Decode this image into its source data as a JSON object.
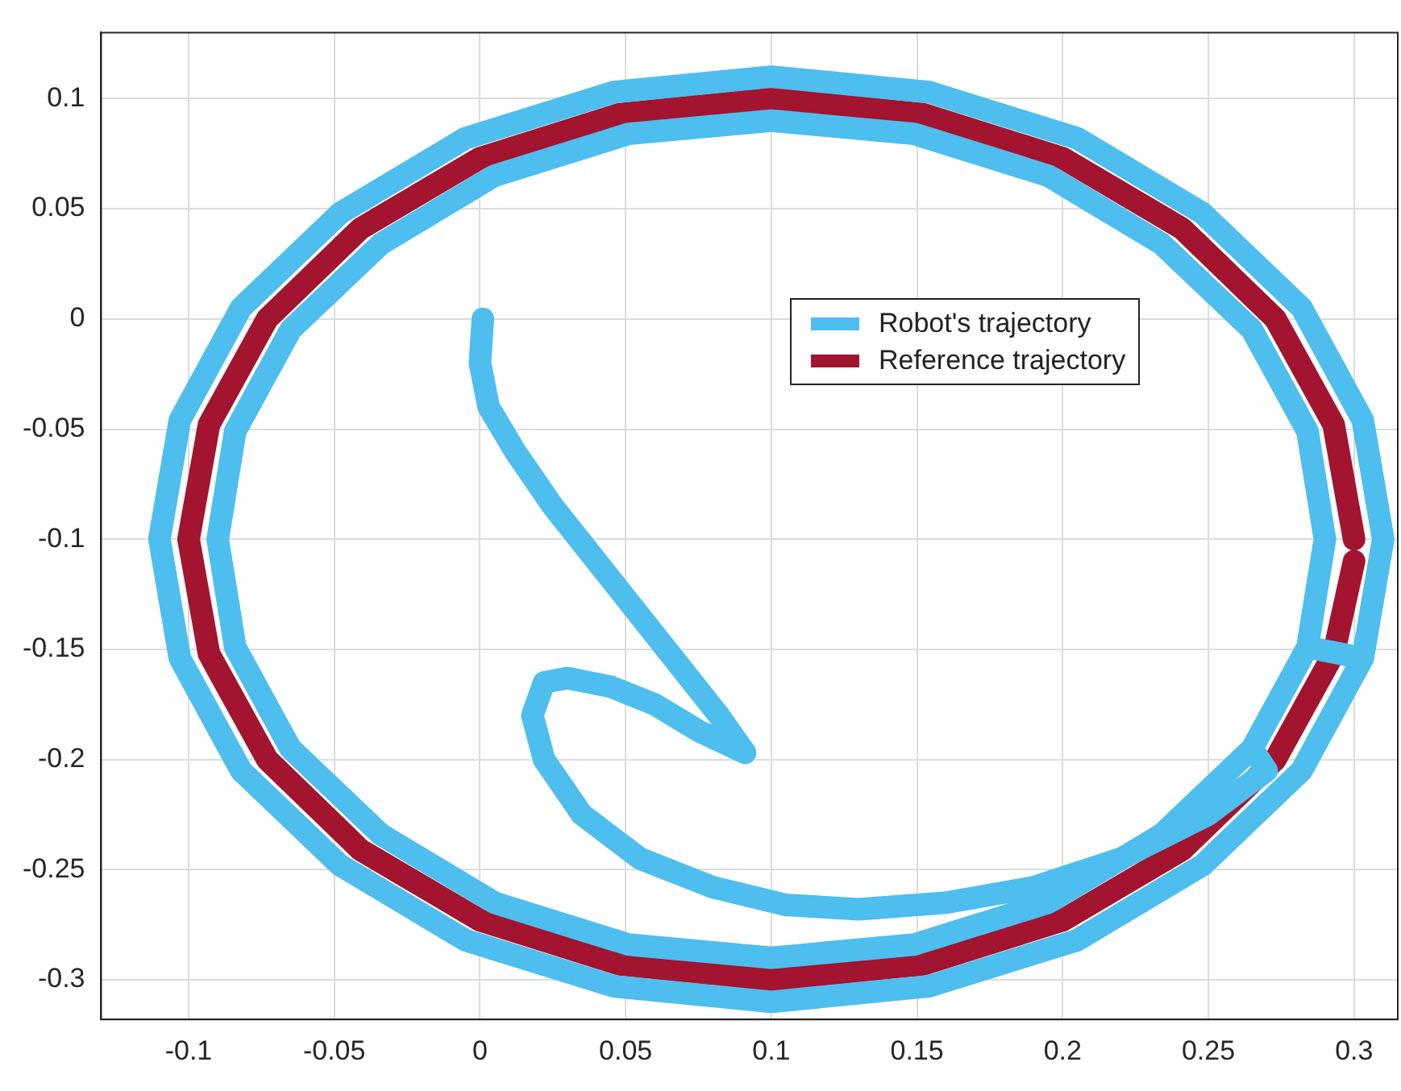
{
  "chart_data": {
    "type": "line",
    "line_style": "solid",
    "grid": true,
    "legend": "top right",
    "xlim": [
      -0.13,
      0.315
    ],
    "xticks": [
      -0.1,
      -0.05,
      0,
      0.05,
      0.1,
      0.15,
      0.2,
      0.25,
      0.3
    ],
    "ylim": [
      -0.318,
      0.13
    ],
    "yticks": [
      -0.3,
      -0.25,
      -0.2,
      -0.15,
      -0.1,
      -0.05,
      0,
      0.05,
      0.1
    ],
    "series": [
      {
        "name": "Robot's trajectory",
        "color": "#4dbeee",
        "x": [
          0.001,
          0.0,
          0.003,
          0.012,
          0.025,
          0.04,
          0.055,
          0.07,
          0.082,
          0.091,
          0.075,
          0.06,
          0.045,
          0.03,
          0.022,
          0.018,
          0.022,
          0.035,
          0.055,
          0.08,
          0.105,
          0.13,
          0.16,
          0.19,
          0.22,
          0.25,
          0.27,
          0.265,
          0.284,
          0.29,
          0.284,
          0.265,
          0.234,
          0.195,
          0.149,
          0.1,
          0.051,
          0.005,
          -0.034,
          -0.065,
          -0.084,
          -0.09,
          -0.084,
          -0.065,
          -0.034,
          0.005,
          0.051,
          0.1,
          0.149,
          0.195,
          0.234,
          0.265,
          0.284,
          0.303,
          0.31,
          0.303,
          0.282,
          0.248,
          0.205,
          0.154,
          0.1,
          0.046,
          -0.005,
          -0.048,
          -0.082,
          -0.103,
          -0.11,
          -0.103,
          -0.082,
          -0.048,
          -0.005,
          0.046,
          0.1,
          0.154,
          0.205,
          0.248,
          0.282,
          0.303
        ],
        "values": [
          0.0,
          -0.02,
          -0.04,
          -0.06,
          -0.085,
          -0.11,
          -0.135,
          -0.16,
          -0.18,
          -0.197,
          -0.187,
          -0.175,
          -0.167,
          -0.163,
          -0.165,
          -0.18,
          -0.2,
          -0.225,
          -0.245,
          -0.258,
          -0.266,
          -0.268,
          -0.265,
          -0.258,
          -0.245,
          -0.225,
          -0.205,
          -0.195,
          -0.149,
          -0.1,
          -0.051,
          -0.005,
          0.034,
          0.065,
          0.084,
          0.09,
          0.084,
          0.065,
          0.034,
          -0.005,
          -0.051,
          -0.1,
          -0.149,
          -0.195,
          -0.234,
          -0.265,
          -0.284,
          -0.29,
          -0.284,
          -0.265,
          -0.234,
          -0.195,
          -0.149,
          -0.154,
          -0.1,
          -0.046,
          0.005,
          0.048,
          0.082,
          0.103,
          0.11,
          0.103,
          0.082,
          0.048,
          0.005,
          -0.046,
          -0.1,
          -0.154,
          -0.205,
          -0.248,
          -0.282,
          -0.303,
          -0.31,
          -0.303,
          -0.282,
          -0.248,
          -0.205,
          -0.154
        ]
      },
      {
        "name": "Reference trajectory",
        "color": "#a2142f",
        "x": [
          0.3,
          0.293,
          0.273,
          0.241,
          0.2,
          0.152,
          0.1,
          0.048,
          0,
          -0.041,
          -0.073,
          -0.093,
          -0.1,
          -0.093,
          -0.073,
          -0.041,
          0,
          0.048,
          0.1,
          0.152,
          0.2,
          0.241,
          0.273,
          0.293,
          0.3
        ],
        "values": [
          -0.1,
          -0.048,
          0,
          0.041,
          0.073,
          0.093,
          0.1,
          0.093,
          0.073,
          0.041,
          0,
          -0.048,
          -0.1,
          -0.152,
          -0.2,
          -0.241,
          -0.273,
          -0.293,
          -0.3,
          -0.293,
          -0.273,
          -0.241,
          -0.2,
          -0.152,
          -0.11
        ]
      }
    ]
  }
}
